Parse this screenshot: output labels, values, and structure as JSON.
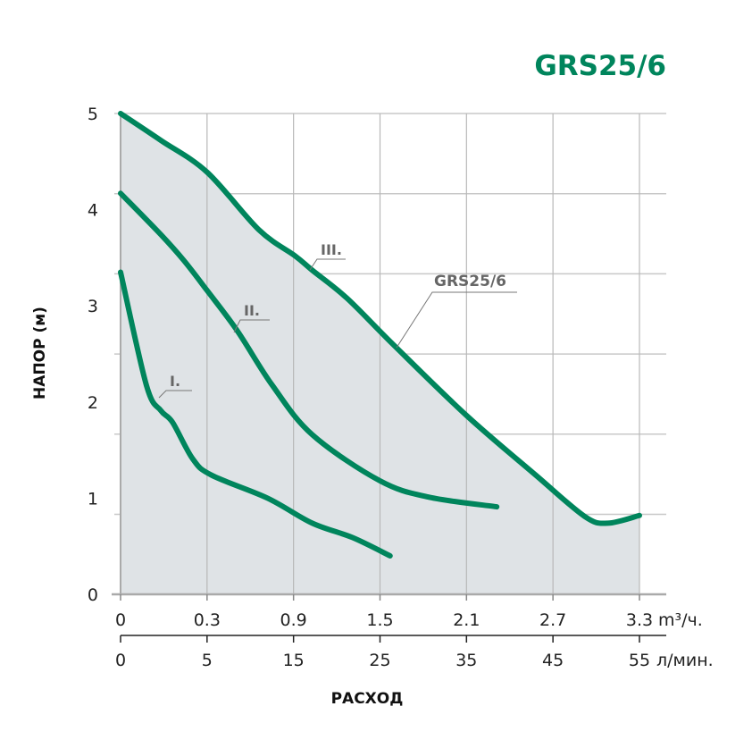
{
  "chart_data": {
    "type": "line",
    "title": "GRS25/6",
    "xlabel": "РАСХОД",
    "ylabel": "НАПОР (м)",
    "x_ticks": [
      "0",
      "0.3",
      "0.9",
      "1.5",
      "2.1",
      "2.7",
      "3.3"
    ],
    "x_unit": "m³/ч.",
    "x2_ticks": [
      "0",
      "5",
      "15",
      "25",
      "35",
      "45",
      "55"
    ],
    "x2_unit": "л/мин.",
    "y_ticks": [
      "0",
      "1",
      "2",
      "3",
      "4",
      "5"
    ],
    "xlim": [
      0,
      3.3
    ],
    "ylim": [
      0,
      5
    ],
    "grid": true,
    "envelope_label": "GRS25/6",
    "colors": {
      "line": "#00855c",
      "title": "#00855c",
      "fill": "#dfe3e6",
      "grid": "#c4c4c4"
    },
    "series": [
      {
        "name": "I.",
        "x": [
          0,
          0.09,
          0.14,
          0.18,
          0.25,
          0.33,
          0.72,
          1.03,
          1.31,
          1.57
        ],
        "y": [
          3.35,
          2.17,
          1.91,
          1.79,
          1.41,
          1.24,
          1.0,
          0.74,
          0.59,
          0.4
        ]
      },
      {
        "name": "II.",
        "x": [
          0,
          0.14,
          0.22,
          0.3,
          0.51,
          0.75,
          1.03,
          1.5,
          1.84,
          2.31
        ],
        "y": [
          4.17,
          3.74,
          3.47,
          3.16,
          2.74,
          2.18,
          1.66,
          1.18,
          1.01,
          0.91
        ]
      },
      {
        "name": "III.",
        "x": [
          0,
          0.14,
          0.3,
          0.66,
          0.91,
          1.03,
          1.27,
          1.59,
          2.1,
          2.58,
          2.92,
          3.08,
          3.3
        ],
        "y": [
          5.0,
          4.72,
          4.39,
          3.79,
          3.52,
          3.37,
          3.08,
          2.6,
          1.86,
          1.24,
          0.81,
          0.74,
          0.82
        ]
      }
    ]
  }
}
